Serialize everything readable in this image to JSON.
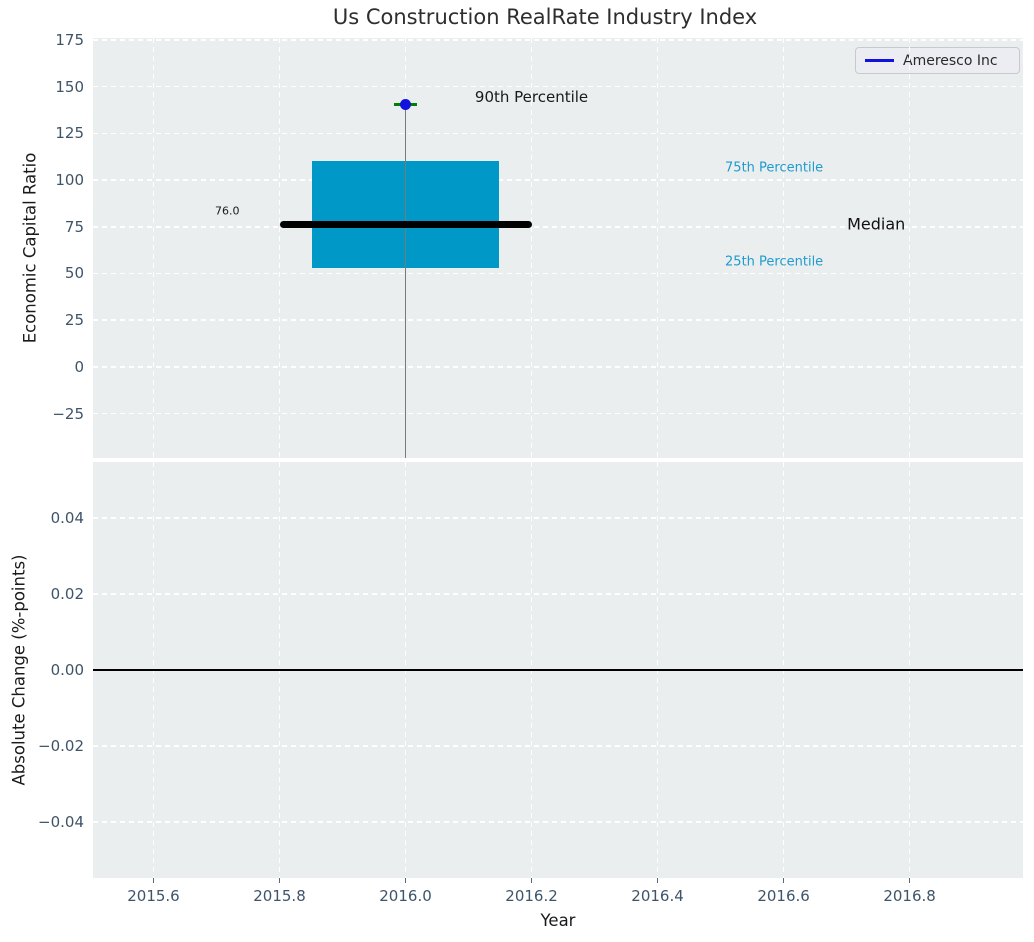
{
  "title": "Us Construction RealRate Industry Index",
  "legend": {
    "label": "Ameresco Inc",
    "line_color": "#1212DC",
    "position": "upper right"
  },
  "colors": {
    "box_fill": "#0099C7",
    "median_line": "#000000",
    "whisker": "#7A7A7A",
    "marker_blue": "#1212DC",
    "cap_green": "#008000",
    "percentile_label": "#1F9BCE",
    "plot_bg": "#EBEEEF",
    "grid": "#FFFFFF",
    "tick_text": "#3E5468",
    "tick_mark": "#5A6672",
    "zero_line": "#000000"
  },
  "chart_data": [
    {
      "type": "boxplot",
      "title": "Us Construction RealRate Industry Index",
      "xlabel": "Year",
      "ylabel": "Economic Capital Ratio",
      "xlim": [
        2015.504,
        2016.98
      ],
      "ylim": [
        -48.8,
        176.1
      ],
      "grid": "white dashed on light-gray panel",
      "xticks": [
        {
          "v": 2015.6,
          "label": "2015.6"
        },
        {
          "v": 2015.8,
          "label": "2015.8"
        },
        {
          "v": 2016.0,
          "label": "2016.0"
        },
        {
          "v": 2016.2,
          "label": "2016.2"
        },
        {
          "v": 2016.4,
          "label": "2016.4"
        },
        {
          "v": 2016.6,
          "label": "2016.6"
        },
        {
          "v": 2016.8,
          "label": "2016.8"
        }
      ],
      "yticks": [
        {
          "v": 175,
          "label": "175"
        },
        {
          "v": 150,
          "label": "150"
        },
        {
          "v": 125,
          "label": "125"
        },
        {
          "v": 100,
          "label": "100"
        },
        {
          "v": 75,
          "label": "75"
        },
        {
          "v": 50,
          "label": "50"
        },
        {
          "v": 25,
          "label": "25"
        },
        {
          "v": 0,
          "label": "0"
        },
        {
          "v": -25,
          "label": "−25"
        }
      ],
      "series": [
        {
          "name": "Ameresco Inc",
          "x": 2016.0,
          "median": 76.0,
          "q1": 53,
          "q3": 110,
          "p90": 140.5,
          "whisker_low_clipped_below_axis": true,
          "box_halfwidth": 0.1485,
          "median_halfwidth": 0.2,
          "cap_halfwidth": 0.0175
        }
      ],
      "annotations": [
        {
          "id": "median-value",
          "text": "76.0",
          "x": 2015.717,
          "y": 83.5,
          "color": "#1a1a1a",
          "fs": 11
        },
        {
          "id": "p90-label",
          "text": "90th Percentile",
          "x": 2016.2,
          "y": 144.5,
          "color": "#1a1a1a",
          "fs": 15
        },
        {
          "id": "p75-label",
          "text": "75th Percentile",
          "x": 2016.585,
          "y": 106.3,
          "color": "#1F9BCE",
          "fs": 13
        },
        {
          "id": "median-label",
          "text": "Median",
          "x": 2016.747,
          "y": 76.3,
          "color": "#111111",
          "fs": 16
        },
        {
          "id": "p25-label",
          "text": "25th Percentile",
          "x": 2016.585,
          "y": 56.0,
          "color": "#1F9BCE",
          "fs": 13
        }
      ]
    },
    {
      "type": "line",
      "xlabel": "Year",
      "ylabel": "Absolute Change (%-points)",
      "xlim": [
        2015.504,
        2016.98
      ],
      "ylim": [
        -0.0547,
        0.0547
      ],
      "grid": "white dashed on light-gray panel",
      "axhline": 0.0,
      "yticks": [
        {
          "v": 0.04,
          "label": "0.04"
        },
        {
          "v": 0.02,
          "label": "0.02"
        },
        {
          "v": 0.0,
          "label": "0.00"
        },
        {
          "v": -0.02,
          "label": "−0.02"
        },
        {
          "v": -0.04,
          "label": "−0.04"
        }
      ],
      "series": []
    }
  ]
}
